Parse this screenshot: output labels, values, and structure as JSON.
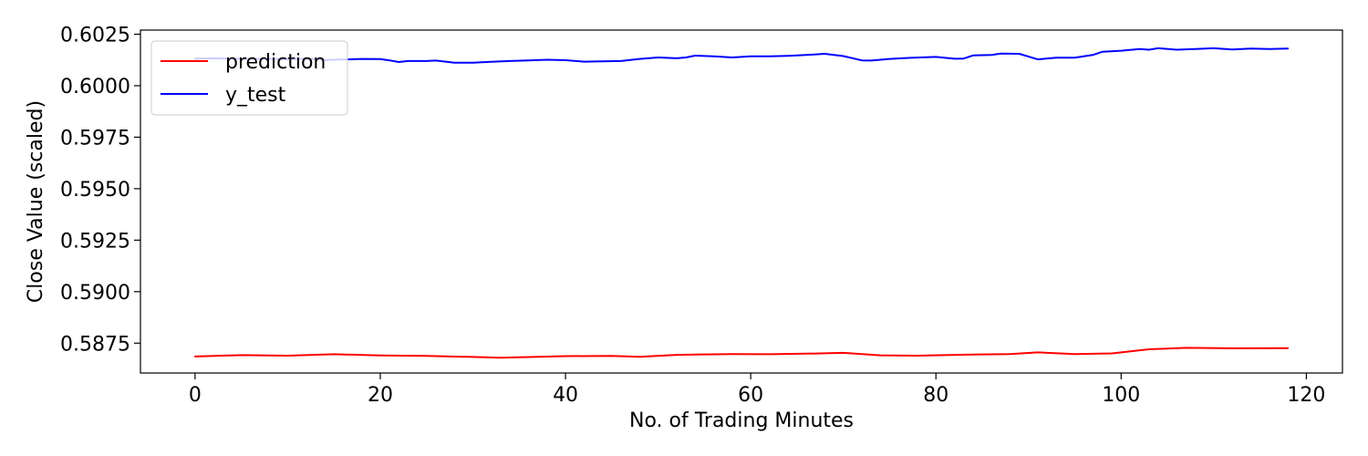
{
  "chart_data": {
    "type": "line",
    "title": "",
    "xlabel": "No. of Trading Minutes",
    "ylabel": "Close Value (scaled)",
    "xlim": [
      -5.9,
      123.9
    ],
    "ylim": [
      0.58605,
      0.6027
    ],
    "xticks": [
      0,
      20,
      40,
      60,
      80,
      100,
      120
    ],
    "yticks": [
      0.5875,
      0.59,
      0.5925,
      0.595,
      0.5975,
      0.6,
      0.6025
    ],
    "ytick_labels": [
      "0.5875",
      "0.5900",
      "0.5925",
      "0.5950",
      "0.5975",
      "0.6000",
      "0.6025"
    ],
    "legend_position": "top-left",
    "grid": false,
    "series": [
      {
        "name": "prediction",
        "color": "#ff0000",
        "x": [
          0,
          5,
          10,
          15,
          20,
          25,
          30,
          33,
          40,
          45,
          48,
          52,
          58,
          62,
          66,
          70,
          74,
          78,
          84,
          88,
          91,
          95,
          99,
          103,
          107,
          112,
          118
        ],
        "y": [
          0.58685,
          0.58692,
          0.58689,
          0.58696,
          0.5869,
          0.58688,
          0.58683,
          0.58679,
          0.58687,
          0.58688,
          0.58684,
          0.58693,
          0.58697,
          0.58696,
          0.58699,
          0.58703,
          0.58691,
          0.58689,
          0.58695,
          0.58697,
          0.58705,
          0.58697,
          0.587,
          0.5872,
          0.58727,
          0.58725,
          0.58726
        ]
      },
      {
        "name": "y_test",
        "color": "#0000ff",
        "x": [
          0,
          2,
          4,
          6,
          8,
          10,
          12,
          14,
          16,
          18,
          20,
          21,
          22,
          23,
          25,
          26,
          28,
          30,
          32,
          34,
          36,
          38,
          40,
          42,
          44,
          46,
          48,
          50,
          52,
          53,
          54,
          56,
          58,
          60,
          62,
          64,
          66,
          68,
          70,
          72,
          73,
          75,
          77,
          79,
          80,
          82,
          83,
          84,
          86,
          87,
          89,
          91,
          93,
          95,
          97,
          98,
          100,
          102,
          103,
          104,
          106,
          108,
          110,
          112,
          114,
          116,
          118
        ],
        "y": [
          0.60131,
          0.60133,
          0.60132,
          0.6013,
          0.60131,
          0.60128,
          0.60132,
          0.60125,
          0.60127,
          0.6013,
          0.60129,
          0.60123,
          0.60115,
          0.6012,
          0.6012,
          0.60122,
          0.60112,
          0.60112,
          0.60116,
          0.6012,
          0.60123,
          0.60126,
          0.60124,
          0.60117,
          0.60118,
          0.6012,
          0.6013,
          0.60137,
          0.60133,
          0.60137,
          0.60146,
          0.60143,
          0.60137,
          0.60143,
          0.60143,
          0.60145,
          0.60149,
          0.60155,
          0.60144,
          0.60123,
          0.60122,
          0.6013,
          0.60135,
          0.60138,
          0.6014,
          0.60131,
          0.60132,
          0.60147,
          0.60149,
          0.60156,
          0.60155,
          0.60128,
          0.60136,
          0.60136,
          0.6015,
          0.60165,
          0.6017,
          0.60178,
          0.60175,
          0.60182,
          0.60175,
          0.60178,
          0.60182,
          0.60176,
          0.6018,
          0.60178,
          0.6018
        ]
      }
    ]
  }
}
